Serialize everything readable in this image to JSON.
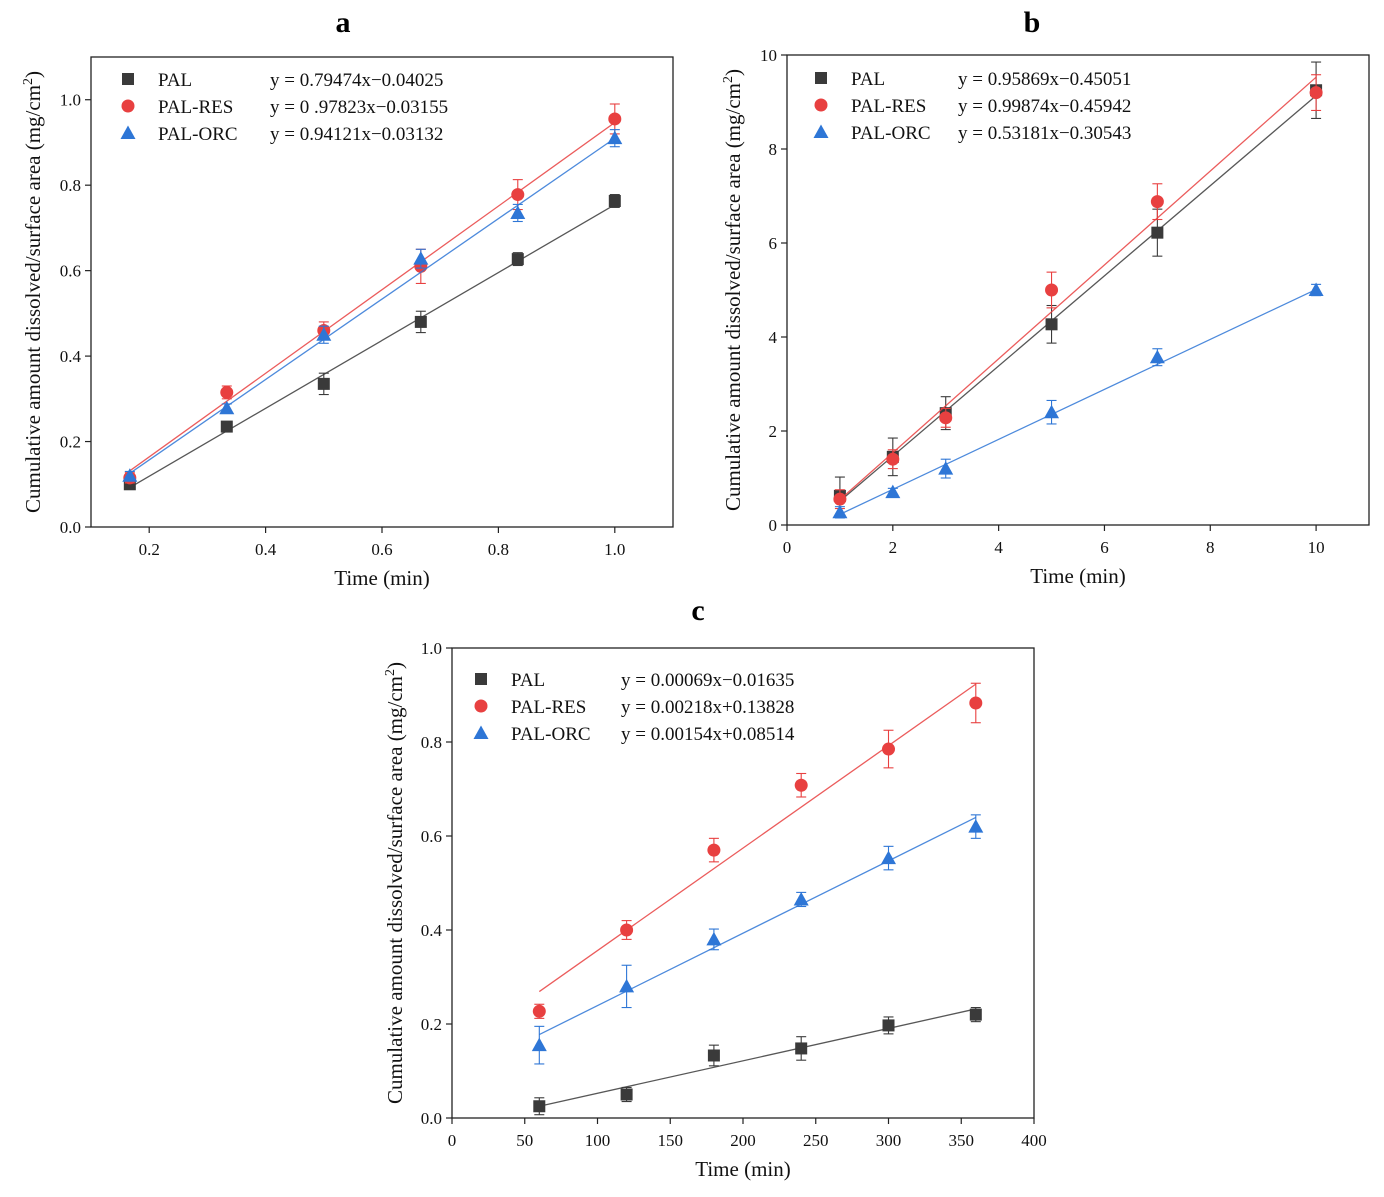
{
  "chart_data": [
    {
      "type": "scatter",
      "panel": "a",
      "xlabel": "Time (min)",
      "ylabel": "Cumulative amount dissolved/surface area (mg/cm",
      "ylabel_sup": "2",
      "ylabel_end": ")",
      "xlim": [
        0.1,
        1.1
      ],
      "ylim": [
        0.0,
        1.1
      ],
      "xticks": [
        "0.2",
        "0.4",
        "0.6",
        "0.8",
        "1.0"
      ],
      "yticks": [
        "0.0",
        "0.2",
        "0.4",
        "0.6",
        "0.8",
        "1.0"
      ],
      "legend_position": "top-left",
      "series": [
        {
          "name": "PAL",
          "equation": "y = 0.79474x−0.04025",
          "color": "#3a3a3a",
          "marker": "square",
          "slope": 0.79474,
          "intercept": -0.04025,
          "x": [
            0.1667,
            0.3333,
            0.5,
            0.6667,
            0.8333,
            1.0
          ],
          "y": [
            0.1,
            0.235,
            0.335,
            0.48,
            0.627,
            0.763
          ],
          "err": [
            0.008,
            0.008,
            0.025,
            0.025,
            0.015,
            0.015
          ]
        },
        {
          "name": "PAL-RES",
          "equation": "y = 0 .97823x−0.03155",
          "color": "#e84040",
          "marker": "circle",
          "slope": 0.97823,
          "intercept": -0.03155,
          "x": [
            0.1667,
            0.3333,
            0.5,
            0.6667,
            0.8333,
            1.0
          ],
          "y": [
            0.115,
            0.315,
            0.46,
            0.61,
            0.778,
            0.955
          ],
          "err": [
            0.012,
            0.015,
            0.02,
            0.04,
            0.035,
            0.035
          ]
        },
        {
          "name": "PAL-ORC",
          "equation": "y = 0.94121x−0.03132",
          "color": "#2e76d6",
          "marker": "triangle",
          "slope": 0.94121,
          "intercept": -0.03132,
          "x": [
            0.1667,
            0.3333,
            0.5,
            0.6667,
            0.8333,
            1.0
          ],
          "y": [
            0.12,
            0.278,
            0.45,
            0.628,
            0.735,
            0.91
          ],
          "err": [
            0.01,
            0.01,
            0.02,
            0.022,
            0.02,
            0.02
          ]
        }
      ]
    },
    {
      "type": "scatter",
      "panel": "b",
      "xlabel": "Time (min)",
      "ylabel": "Cumulative amount dissolved/surface area (mg/cm",
      "ylabel_sup": "2",
      "ylabel_end": ")",
      "xlim": [
        0,
        11
      ],
      "ylim": [
        0,
        10
      ],
      "xticks": [
        "0",
        "2",
        "4",
        "6",
        "8",
        "10"
      ],
      "yticks": [
        "0",
        "2",
        "4",
        "6",
        "8",
        "10"
      ],
      "legend_position": "top-left",
      "series": [
        {
          "name": "PAL",
          "equation": "y = 0.95869x−0.45051",
          "color": "#3a3a3a",
          "marker": "square",
          "slope": 0.95869,
          "intercept": -0.45051,
          "x": [
            1,
            2,
            3,
            5,
            7,
            10
          ],
          "y": [
            0.62,
            1.45,
            2.38,
            4.27,
            6.22,
            9.25
          ],
          "err": [
            0.4,
            0.4,
            0.35,
            0.4,
            0.5,
            0.6
          ]
        },
        {
          "name": "PAL-RES",
          "equation": "y = 0.99874x−0.45942",
          "color": "#e84040",
          "marker": "circle",
          "slope": 0.99874,
          "intercept": -0.45942,
          "x": [
            1,
            2,
            3,
            5,
            7,
            10
          ],
          "y": [
            0.55,
            1.4,
            2.28,
            5.0,
            6.88,
            9.2
          ],
          "err": [
            0.2,
            0.2,
            0.2,
            0.38,
            0.38,
            0.38
          ]
        },
        {
          "name": "PAL-ORC",
          "equation": "y = 0.53181x−0.30543",
          "color": "#2e76d6",
          "marker": "triangle",
          "slope": 0.53181,
          "intercept": -0.30543,
          "x": [
            1,
            2,
            3,
            5,
            7,
            10
          ],
          "y": [
            0.27,
            0.7,
            1.2,
            2.4,
            3.57,
            5.0
          ],
          "err": [
            0.12,
            0.08,
            0.2,
            0.25,
            0.18,
            0.12
          ]
        }
      ]
    },
    {
      "type": "scatter",
      "panel": "c",
      "xlabel": "Time (min)",
      "ylabel": "Cumulative amount dissolved/surface area (mg/cm",
      "ylabel_sup": "2",
      "ylabel_end": ")",
      "xlim": [
        0,
        400
      ],
      "ylim": [
        0.0,
        1.0
      ],
      "xticks": [
        "0",
        "50",
        "100",
        "150",
        "200",
        "250",
        "300",
        "350",
        "400"
      ],
      "yticks": [
        "0.0",
        "0.2",
        "0.4",
        "0.6",
        "0.8",
        "1.0"
      ],
      "legend_position": "top-left",
      "series": [
        {
          "name": "PAL",
          "equation": "y = 0.00069x−0.01635",
          "color": "#3a3a3a",
          "marker": "square",
          "slope": 0.00069,
          "intercept": -0.01635,
          "x": [
            60,
            120,
            180,
            240,
            300,
            360
          ],
          "y": [
            0.025,
            0.05,
            0.133,
            0.148,
            0.197,
            0.22
          ],
          "err": [
            0.018,
            0.015,
            0.022,
            0.025,
            0.018,
            0.015
          ]
        },
        {
          "name": "PAL-RES",
          "equation": "y = 0.00218x+0.13828",
          "color": "#e84040",
          "marker": "circle",
          "slope": 0.00218,
          "intercept": 0.13828,
          "x": [
            60,
            120,
            180,
            240,
            300,
            360
          ],
          "y": [
            0.227,
            0.4,
            0.57,
            0.708,
            0.785,
            0.883
          ],
          "err": [
            0.015,
            0.02,
            0.025,
            0.025,
            0.04,
            0.042
          ]
        },
        {
          "name": "PAL-ORC",
          "equation": "y = 0.00154x+0.08514",
          "color": "#2e76d6",
          "marker": "triangle",
          "slope": 0.00154,
          "intercept": 0.08514,
          "x": [
            60,
            120,
            180,
            240,
            300,
            360
          ],
          "y": [
            0.155,
            0.28,
            0.38,
            0.465,
            0.553,
            0.62
          ],
          "err": [
            0.04,
            0.045,
            0.022,
            0.015,
            0.025,
            0.025
          ]
        }
      ]
    }
  ]
}
